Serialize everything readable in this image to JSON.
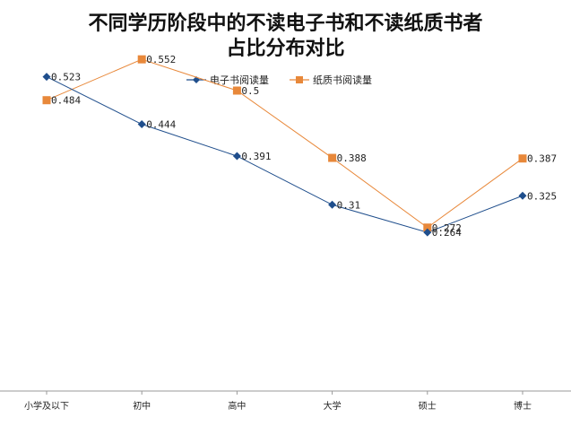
{
  "chart_data": {
    "type": "line",
    "title_line1": "不同学历阶段中的不读电子书和不读纸质书者",
    "title_line2": "占比分布对比",
    "categories": [
      "小学及以下",
      "初中",
      "高中",
      "大学",
      "硕士",
      "博士"
    ],
    "series": [
      {
        "name": "电子书阅读量",
        "values": [
          0.523,
          0.444,
          0.391,
          0.31,
          0.264,
          0.325
        ],
        "color": "#1f4e8c",
        "marker": "diamond"
      },
      {
        "name": "纸质书阅读量",
        "values": [
          0.484,
          0.552,
          0.5,
          0.388,
          0.272,
          0.387
        ],
        "color": "#e8883a",
        "marker": "square"
      }
    ],
    "data_labels": [
      [
        "0.523",
        "0.444",
        "0.391",
        "0.31",
        "0.264",
        "0.325"
      ],
      [
        "0.484",
        "0.552",
        "0.5",
        "0.388",
        "0.272",
        "0.387"
      ]
    ],
    "ylim": [
      0,
      0.6
    ],
    "grid": false,
    "legend_position": "top-center"
  }
}
